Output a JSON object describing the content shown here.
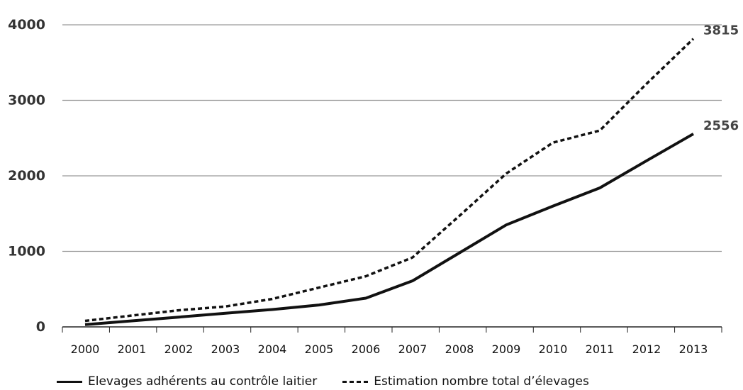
{
  "chart_data": {
    "type": "line",
    "title": "",
    "xlabel": "",
    "ylabel": "",
    "categories": [
      "2000",
      "2001",
      "2002",
      "2003",
      "2004",
      "2005",
      "2006",
      "2007",
      "2008",
      "2009",
      "2010",
      "2011",
      "2012",
      "2013"
    ],
    "ylim": [
      0,
      4000
    ],
    "yticks": [
      "0",
      "1000",
      "2000",
      "3000",
      "4000"
    ],
    "grid": "horizontal",
    "legend_position": "bottom",
    "series": [
      {
        "name": "Elevages adhérents au contrôle laitier",
        "style": "solid",
        "color": "#111111",
        "values": [
          30,
          80,
          130,
          180,
          230,
          290,
          380,
          610,
          980,
          1350,
          1600,
          1840,
          2200,
          2556
        ],
        "end_label": "2556"
      },
      {
        "name": "Estimation nombre total d’élevages",
        "style": "dashed",
        "color": "#111111",
        "values": [
          80,
          150,
          220,
          270,
          370,
          520,
          670,
          920,
          1470,
          2030,
          2440,
          2600,
          3220,
          3815
        ],
        "end_label": "3815"
      }
    ]
  }
}
